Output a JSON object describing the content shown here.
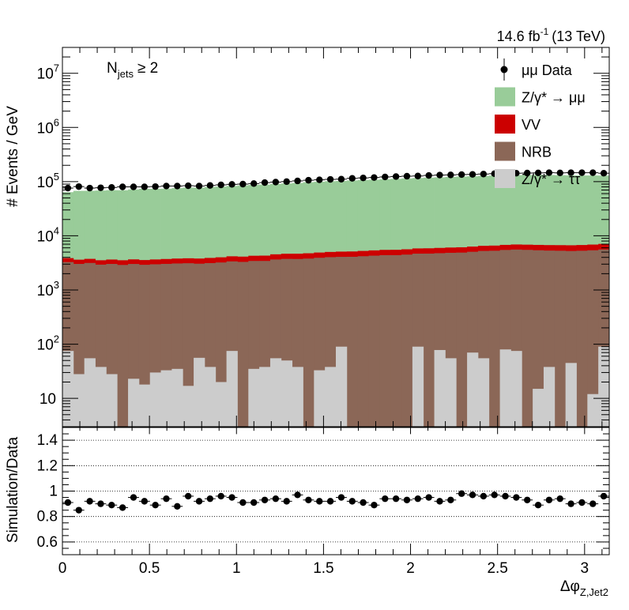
{
  "header": {
    "lumi_value": "14.6 fb",
    "lumi_exp": "-1",
    "energy": "(13 TeV)"
  },
  "annotation": {
    "n_main": "N",
    "n_sub": "jets",
    "n_cond": "≥ 2"
  },
  "chart_data": [
    {
      "type": "bar",
      "stacked": true,
      "log_y": true,
      "ylabel": "# Events / GeV",
      "xlim": [
        0,
        3.1416
      ],
      "ylim": [
        3,
        30000000
      ],
      "yticks": [
        {
          "value": 10,
          "label": "10",
          "exp": ""
        },
        {
          "value": 100,
          "label": "10",
          "exp": "2"
        },
        {
          "value": 1000,
          "label": "10",
          "exp": "3"
        },
        {
          "value": 10000,
          "label": "10",
          "exp": "4"
        },
        {
          "value": 100000,
          "label": "10",
          "exp": "5"
        },
        {
          "value": 1000000,
          "label": "10",
          "exp": "6"
        },
        {
          "value": 10000000,
          "label": "10",
          "exp": "7"
        }
      ],
      "legend": {
        "position": "top-right",
        "entries": [
          {
            "key": "data",
            "label": "μμ Data",
            "color": "#000000",
            "style": "marker"
          },
          {
            "key": "zmm",
            "label": "Z/γ* → μμ",
            "color": "#99cc99",
            "style": "fill"
          },
          {
            "key": "vv",
            "label": "VV",
            "color": "#cc0000",
            "style": "fill"
          },
          {
            "key": "nrb",
            "label": "NRB",
            "color": "#8b6757",
            "style": "fill"
          },
          {
            "key": "ztt",
            "label": "Z/γ* → ττ",
            "color": "#cccccc",
            "style": "fill"
          }
        ]
      },
      "bins": 50,
      "series": [
        {
          "name": "Z/γ* → ττ",
          "color": "#cccccc",
          "values": [
            75,
            28,
            55,
            38,
            28,
            0,
            23,
            18,
            30,
            33,
            35,
            17,
            56,
            38,
            20,
            75,
            0,
            35,
            38,
            55,
            50,
            38,
            0,
            33,
            38,
            90,
            0,
            0,
            0,
            0,
            0,
            0,
            90,
            0,
            78,
            55,
            0,
            70,
            55,
            0,
            80,
            75,
            0,
            15,
            38,
            0,
            45,
            0,
            12,
            90
          ]
        },
        {
          "name": "NRB",
          "color": "#8b6757",
          "values": [
            3200,
            3000,
            3100,
            2900,
            3000,
            2900,
            3000,
            2900,
            2950,
            3000,
            3050,
            3100,
            3000,
            3100,
            3200,
            3300,
            3300,
            3400,
            3400,
            3600,
            3700,
            3700,
            3800,
            3900,
            4000,
            4000,
            4100,
            4200,
            4300,
            4400,
            4400,
            4500,
            4600,
            4700,
            4700,
            4800,
            4900,
            5000,
            5200,
            5300,
            5400,
            5500,
            5500,
            5400,
            5300,
            5300,
            5200,
            5300,
            5400,
            5500
          ]
        },
        {
          "name": "VV",
          "color": "#cc0000",
          "values": [
            600,
            600,
            600,
            600,
            620,
            640,
            650,
            650,
            680,
            700,
            720,
            730,
            750,
            770,
            790,
            810,
            830,
            850,
            870,
            900,
            920,
            940,
            960,
            980,
            1000,
            1020,
            1040,
            1060,
            1080,
            1100,
            1120,
            1140,
            1160,
            1180,
            1200,
            1220,
            1240,
            1260,
            1280,
            1300,
            1320,
            1340,
            1360,
            1380,
            1400,
            1420,
            1440,
            1460,
            1480,
            1500
          ]
        },
        {
          "name": "Z/γ* → μμ",
          "color": "#99cc99",
          "values": [
            60000,
            64000,
            64000,
            65000,
            66000,
            66000,
            68000,
            70000,
            70000,
            70000,
            72000,
            74000,
            74000,
            76000,
            77000,
            79000,
            81000,
            83000,
            84000,
            86000,
            88000,
            90000,
            93000,
            95000,
            97000,
            98000,
            100000,
            102000,
            103000,
            105000,
            107000,
            109000,
            111000,
            113000,
            114000,
            116000,
            118000,
            119000,
            121000,
            123000,
            124000,
            125000,
            126000,
            127000,
            126000,
            125000,
            124000,
            123000,
            123000,
            122000
          ]
        }
      ],
      "data_points": {
        "name": "μμ Data",
        "values": [
          76000,
          81000,
          76000,
          77000,
          78000,
          80000,
          80000,
          80000,
          81000,
          83000,
          83000,
          84000,
          83000,
          85000,
          87000,
          89000,
          90000,
          92000,
          96000,
          98000,
          100000,
          103000,
          106000,
          108000,
          110000,
          111000,
          115000,
          117000,
          119000,
          122000,
          124000,
          126000,
          127000,
          130000,
          132000,
          133000,
          135000,
          136000,
          138000,
          140000,
          142000,
          143000,
          144000,
          145000,
          146000,
          145000,
          146000,
          146000,
          146000,
          143000
        ]
      }
    },
    {
      "type": "scatter",
      "ylabel": "Simulation/Data",
      "xlabel": "Δφ",
      "xlabel_sub": "Z,Jet2",
      "xlim": [
        0,
        3.1416
      ],
      "ylim": [
        0.5,
        1.5
      ],
      "xticks": [
        {
          "value": 0,
          "label": "0"
        },
        {
          "value": 0.5,
          "label": "0.5"
        },
        {
          "value": 1,
          "label": "1"
        },
        {
          "value": 1.5,
          "label": "1.5"
        },
        {
          "value": 2,
          "label": "2"
        },
        {
          "value": 2.5,
          "label": "2.5"
        },
        {
          "value": 3,
          "label": "3"
        }
      ],
      "yticks": [
        {
          "value": 0.6,
          "label": "0.6"
        },
        {
          "value": 0.8,
          "label": "0.8"
        },
        {
          "value": 1,
          "label": "1"
        },
        {
          "value": 1.2,
          "label": "1.2"
        },
        {
          "value": 1.4,
          "label": "1.4"
        }
      ],
      "grid_lines": [
        0.6,
        0.8,
        1.0,
        1.2,
        1.4
      ],
      "values": [
        0.91,
        0.85,
        0.92,
        0.9,
        0.89,
        0.87,
        0.95,
        0.92,
        0.89,
        0.94,
        0.88,
        0.96,
        0.92,
        0.94,
        0.96,
        0.95,
        0.91,
        0.91,
        0.93,
        0.94,
        0.92,
        0.97,
        0.93,
        0.92,
        0.92,
        0.95,
        0.92,
        0.91,
        0.89,
        0.94,
        0.94,
        0.93,
        0.94,
        0.95,
        0.92,
        0.93,
        0.98,
        0.97,
        0.96,
        0.97,
        0.96,
        0.95,
        0.93,
        0.89,
        0.93,
        0.94,
        0.9,
        0.91,
        0.9,
        0.96
      ]
    }
  ]
}
